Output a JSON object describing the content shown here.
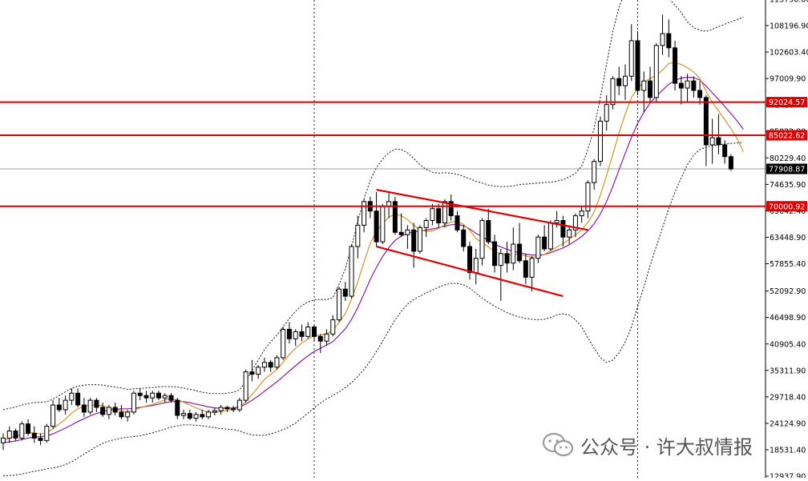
{
  "chart_data": {
    "type": "candlestick",
    "title": "",
    "xlabel": "",
    "ylabel": "",
    "ylim": [
      9500,
      116000
    ],
    "grid": false,
    "y_ticks": [
      {
        "value": 113790.0,
        "label": "113790.00"
      },
      {
        "value": 108196.9,
        "label": "108196.90"
      },
      {
        "value": 102603.4,
        "label": "102603.40"
      },
      {
        "value": 97009.9,
        "label": "97009.90"
      },
      {
        "value": 91416.4,
        "label": "91416.40"
      },
      {
        "value": 85822.9,
        "label": "85822.90"
      },
      {
        "value": 80229.4,
        "label": "80229.40"
      },
      {
        "value": 74635.9,
        "label": "74635.90"
      },
      {
        "value": 69042.4,
        "label": "69042.40"
      },
      {
        "value": 63448.9,
        "label": "63448.90"
      },
      {
        "value": 57855.4,
        "label": "57855.40"
      },
      {
        "value": 52092.9,
        "label": "52092.90"
      },
      {
        "value": 46498.9,
        "label": "46498.90"
      },
      {
        "value": 40905.4,
        "label": "40905.40"
      },
      {
        "value": 35311.9,
        "label": "35311.90"
      },
      {
        "value": 29718.4,
        "label": "29718.40"
      },
      {
        "value": 24124.9,
        "label": "24124.90"
      },
      {
        "value": 18531.4,
        "label": "18531.40"
      },
      {
        "value": 12937.9,
        "label": "12937.90"
      }
    ],
    "horizontal_levels": [
      {
        "value": 92024.57,
        "label": "92024.57",
        "color": "#e00000"
      },
      {
        "value": 85022.62,
        "label": "85022.62",
        "color": "#e00000"
      },
      {
        "value": 70000.92,
        "label": "70000.92",
        "color": "#e00000"
      }
    ],
    "current_price": {
      "value": 77908.87,
      "label": "77908.87"
    },
    "channel_lines": [
      {
        "from": {
          "i": 60,
          "v": 73500
        },
        "to": {
          "i": 94,
          "v": 65000
        }
      },
      {
        "from": {
          "i": 60,
          "v": 61500
        },
        "to": {
          "i": 90,
          "v": 51000
        }
      }
    ],
    "vertical_markers": [
      {
        "i": 50
      },
      {
        "i": 102
      }
    ],
    "ohlc": [
      [
        20000,
        22000,
        18500,
        21000
      ],
      [
        21000,
        23500,
        20000,
        22500
      ],
      [
        22500,
        23000,
        20500,
        21000
      ],
      [
        21000,
        24500,
        20500,
        24000
      ],
      [
        24000,
        25000,
        21500,
        22000
      ],
      [
        22000,
        23500,
        20000,
        21000
      ],
      [
        21000,
        22000,
        19500,
        20500
      ],
      [
        20500,
        24000,
        20000,
        23500
      ],
      [
        23500,
        29000,
        23000,
        28000
      ],
      [
        28000,
        29500,
        26500,
        27000
      ],
      [
        27000,
        30000,
        26000,
        29000
      ],
      [
        29000,
        31500,
        28000,
        30500
      ],
      [
        30500,
        31500,
        27500,
        28000
      ],
      [
        28000,
        29500,
        25500,
        26500
      ],
      [
        26500,
        29500,
        26000,
        29000
      ],
      [
        29000,
        29500,
        26500,
        27500
      ],
      [
        27500,
        28500,
        25500,
        26000
      ],
      [
        26000,
        28000,
        25000,
        27500
      ],
      [
        27500,
        28500,
        25800,
        26500
      ],
      [
        26500,
        28000,
        25000,
        25500
      ],
      [
        25500,
        27000,
        24500,
        26500
      ],
      [
        26500,
        31000,
        26000,
        30500
      ],
      [
        30500,
        31500,
        29000,
        30000
      ],
      [
        30000,
        31000,
        28500,
        29500
      ],
      [
        29500,
        31000,
        28500,
        30500
      ],
      [
        30500,
        31000,
        29000,
        29500
      ],
      [
        29500,
        30500,
        28500,
        30000
      ],
      [
        30000,
        30500,
        28500,
        29000
      ],
      [
        29000,
        29500,
        25000,
        25800
      ],
      [
        25800,
        27000,
        25000,
        26200
      ],
      [
        26200,
        27000,
        24800,
        25200
      ],
      [
        25200,
        26500,
        24500,
        26000
      ],
      [
        26000,
        27000,
        25000,
        25500
      ],
      [
        25500,
        27000,
        25000,
        26500
      ],
      [
        26500,
        27500,
        25800,
        26800
      ],
      [
        26800,
        28000,
        26000,
        27500
      ],
      [
        27500,
        27800,
        26500,
        27200
      ],
      [
        27200,
        27800,
        26500,
        27000
      ],
      [
        27000,
        29500,
        26500,
        29000
      ],
      [
        29000,
        35500,
        28500,
        35000
      ],
      [
        35000,
        37500,
        33000,
        34500
      ],
      [
        34500,
        36500,
        33500,
        36000
      ],
      [
        36000,
        38000,
        35000,
        37000
      ],
      [
        37000,
        37500,
        35000,
        36000
      ],
      [
        36000,
        38500,
        35500,
        38000
      ],
      [
        38000,
        44500,
        37500,
        44000
      ],
      [
        44000,
        45500,
        41000,
        42000
      ],
      [
        42000,
        44000,
        40500,
        43500
      ],
      [
        43500,
        45000,
        41500,
        42500
      ],
      [
        42500,
        45500,
        42000,
        44500
      ],
      [
        44500,
        45000,
        41500,
        42500
      ],
      [
        42500,
        43000,
        39000,
        41500
      ],
      [
        41500,
        44000,
        40500,
        43000
      ],
      [
        43000,
        47000,
        42500,
        46000
      ],
      [
        46000,
        53000,
        45500,
        52500
      ],
      [
        52500,
        54000,
        50000,
        51000
      ],
      [
        51000,
        62000,
        50500,
        61500
      ],
      [
        61500,
        68000,
        59000,
        66000
      ],
      [
        66000,
        71500,
        64500,
        71000
      ],
      [
        71000,
        72000,
        67500,
        69000
      ],
      [
        69000,
        73000,
        61500,
        62500
      ],
      [
        62500,
        70500,
        62000,
        70000
      ],
      [
        70000,
        73000,
        67500,
        71000
      ],
      [
        71000,
        72000,
        64000,
        64500
      ],
      [
        64500,
        68500,
        63500,
        64000
      ],
      [
        64000,
        66000,
        61000,
        65000
      ],
      [
        65000,
        66500,
        57000,
        60500
      ],
      [
        60500,
        66000,
        60000,
        65500
      ],
      [
        65500,
        67500,
        63500,
        67000
      ],
      [
        67000,
        70500,
        66000,
        69500
      ],
      [
        69500,
        70500,
        65500,
        66500
      ],
      [
        66500,
        71500,
        65500,
        71000
      ],
      [
        71000,
        72500,
        67000,
        68000
      ],
      [
        68000,
        69000,
        64500,
        65000
      ],
      [
        65000,
        66000,
        60500,
        61500
      ],
      [
        61500,
        62500,
        54500,
        56000
      ],
      [
        56000,
        61000,
        53500,
        59000
      ],
      [
        59000,
        67500,
        57500,
        67000
      ],
      [
        67000,
        69500,
        62000,
        62500
      ],
      [
        62500,
        64000,
        56000,
        57500
      ],
      [
        57500,
        61000,
        50000,
        60000
      ],
      [
        60000,
        62500,
        56000,
        58000
      ],
      [
        58000,
        65500,
        56500,
        62000
      ],
      [
        62000,
        66500,
        58000,
        58500
      ],
      [
        58500,
        60000,
        53500,
        55000
      ],
      [
        55000,
        59500,
        52000,
        59000
      ],
      [
        59000,
        64000,
        58000,
        63500
      ],
      [
        63500,
        66000,
        60500,
        61000
      ],
      [
        61000,
        67000,
        60500,
        66500
      ],
      [
        66500,
        69000,
        65500,
        67000
      ],
      [
        67000,
        68000,
        61500,
        63500
      ],
      [
        63500,
        66000,
        62000,
        65000
      ],
      [
        65000,
        68500,
        63500,
        68000
      ],
      [
        68000,
        70000,
        66500,
        69000
      ],
      [
        69000,
        75500,
        67500,
        75000
      ],
      [
        75000,
        80000,
        73500,
        79500
      ],
      [
        79500,
        89000,
        78500,
        88000
      ],
      [
        88000,
        93500,
        86000,
        91500
      ],
      [
        91500,
        97500,
        90500,
        97000
      ],
      [
        97000,
        99500,
        93500,
        95500
      ],
      [
        95500,
        100000,
        92500,
        97500
      ],
      [
        97500,
        108500,
        96500,
        105000
      ],
      [
        105000,
        107000,
        93500,
        94500
      ],
      [
        94500,
        98500,
        90000,
        96500
      ],
      [
        96500,
        99500,
        92000,
        93000
      ],
      [
        93000,
        104500,
        92000,
        104000
      ],
      [
        104000,
        110500,
        102000,
        106500
      ],
      [
        106500,
        109500,
        101500,
        103500
      ],
      [
        103500,
        105000,
        94500,
        96000
      ],
      [
        96000,
        97500,
        91500,
        95000
      ],
      [
        95000,
        98000,
        92000,
        96500
      ],
      [
        96500,
        97500,
        93000,
        94500
      ],
      [
        94500,
        96500,
        91500,
        93000
      ],
      [
        93000,
        93500,
        78500,
        83000
      ],
      [
        83000,
        88500,
        79000,
        84500
      ],
      [
        84500,
        89500,
        81000,
        83000
      ],
      [
        83000,
        84000,
        79000,
        80500
      ],
      [
        80500,
        81000,
        77500,
        77900
      ]
    ],
    "ma_fast": [
      20500,
      21000,
      21400,
      21800,
      22200,
      22100,
      21900,
      22100,
      23000,
      24000,
      25000,
      26300,
      27200,
      27700,
      27900,
      28000,
      27800,
      27400,
      27000,
      26800,
      26500,
      26900,
      27400,
      27800,
      28100,
      28600,
      29100,
      29300,
      29100,
      28600,
      28000,
      27400,
      26900,
      26500,
      26400,
      26600,
      26900,
      27100,
      27500,
      28700,
      30200,
      31800,
      33400,
      34500,
      35500,
      37000,
      38700,
      40000,
      41100,
      42000,
      42600,
      42800,
      43100,
      43700,
      45500,
      47300,
      50400,
      54000,
      58200,
      62100,
      64700,
      66400,
      67700,
      68400,
      68000,
      67200,
      66000,
      65100,
      64700,
      64800,
      65300,
      66100,
      66700,
      66800,
      66200,
      64900,
      63200,
      62300,
      61400,
      60400,
      60000,
      59700,
      59800,
      59900,
      59500,
      59200,
      59400,
      59800,
      60600,
      61400,
      62100,
      63000,
      64000,
      65000,
      66600,
      68800,
      72400,
      76500,
      81000,
      85500,
      89500,
      93000,
      95000,
      96200,
      97000,
      97700,
      98800,
      100200,
      100400,
      100000,
      99300,
      98400,
      97000,
      94300,
      92000,
      90200,
      88300,
      86400,
      84300,
      81500
    ],
    "ma_slow": [
      20000,
      20200,
      20400,
      20700,
      21000,
      21200,
      21300,
      21500,
      21900,
      22500,
      23100,
      23800,
      24500,
      25100,
      25700,
      26200,
      26600,
      26900,
      27100,
      27200,
      27200,
      27300,
      27500,
      27700,
      27900,
      28200,
      28500,
      28700,
      28800,
      28700,
      28500,
      28200,
      27900,
      27600,
      27400,
      27300,
      27300,
      27400,
      27600,
      28200,
      29000,
      29900,
      30900,
      31900,
      32900,
      34000,
      35200,
      36300,
      37400,
      38400,
      39300,
      40000,
      40700,
      41400,
      42700,
      44100,
      46100,
      48600,
      51500,
      54500,
      57100,
      59400,
      61300,
      62800,
      63700,
      64300,
      64600,
      64800,
      65000,
      65200,
      65500,
      65800,
      66100,
      66200,
      65900,
      65200,
      64300,
      63600,
      62800,
      62000,
      61400,
      60900,
      60500,
      60200,
      59900,
      59700,
      59700,
      59800,
      60200,
      60700,
      61200,
      61900,
      62700,
      63600,
      64800,
      66300,
      68400,
      71000,
      74200,
      77700,
      81200,
      84600,
      87500,
      89900,
      91800,
      93300,
      94600,
      95800,
      96600,
      97100,
      97300,
      97200,
      96700,
      95400,
      94000,
      92600,
      91100,
      89600,
      88000,
      86300
    ],
    "bb_upper": [
      27000,
      27300,
      27600,
      28000,
      28300,
      28500,
      28600,
      28700,
      29200,
      30000,
      30800,
      31500,
      32000,
      32200,
      32300,
      32300,
      32200,
      32000,
      31800,
      31600,
      31300,
      31400,
      31500,
      31600,
      31700,
      31800,
      31900,
      31900,
      31800,
      31600,
      31300,
      31000,
      30700,
      30500,
      30400,
      30400,
      30500,
      30700,
      31200,
      33000,
      35300,
      37500,
      39700,
      41300,
      42800,
      44500,
      46300,
      47800,
      49000,
      49800,
      50200,
      50300,
      50300,
      50700,
      53500,
      56800,
      61500,
      66800,
      71500,
      75500,
      78200,
      80000,
      81300,
      82100,
      82000,
      81300,
      80100,
      78800,
      77800,
      77200,
      77000,
      77100,
      77000,
      76800,
      76300,
      75800,
      75300,
      74900,
      74500,
      74300,
      74200,
      74200,
      74300,
      74600,
      74700,
      74800,
      74900,
      75000,
      75100,
      75300,
      75600,
      76200,
      77000,
      78500,
      82000,
      86500,
      93000,
      100000,
      107000,
      112000,
      115500,
      117500,
      118000,
      117800,
      117000,
      116000,
      115000,
      114000,
      112500,
      111000,
      109000,
      107800,
      107200,
      107000,
      107400,
      108000,
      108500,
      109000,
      109500,
      110000
    ],
    "bb_lower": [
      13000,
      13100,
      13200,
      13400,
      13700,
      14000,
      14200,
      14500,
      14700,
      15000,
      15400,
      16000,
      16800,
      17600,
      18400,
      19200,
      19900,
      20400,
      20700,
      21000,
      21200,
      21300,
      21500,
      21800,
      22100,
      22500,
      22900,
      23300,
      23600,
      23800,
      23800,
      23700,
      23600,
      23400,
      23200,
      23000,
      22900,
      22800,
      22500,
      22000,
      21700,
      21600,
      21600,
      21900,
      22300,
      22800,
      23400,
      24200,
      25200,
      26300,
      27400,
      28400,
      29300,
      30000,
      30800,
      31700,
      32700,
      34000,
      35500,
      37300,
      39300,
      41500,
      43800,
      46000,
      47800,
      49300,
      50300,
      51000,
      51700,
      52300,
      52900,
      53400,
      53700,
      53700,
      53400,
      52700,
      51600,
      50600,
      49700,
      48900,
      48200,
      47500,
      47000,
      46600,
      46300,
      46100,
      46000,
      46100,
      46500,
      47000,
      47300,
      47000,
      46000,
      44500,
      42200,
      40000,
      38000,
      37000,
      37500,
      39000,
      41300,
      44500,
      48800,
      53000,
      57500,
      61500,
      65500,
      69500,
      73000,
      76000,
      78800,
      80800,
      82000,
      82500,
      82800,
      83000,
      83200,
      83300,
      83400,
      83500
    ]
  }
}
